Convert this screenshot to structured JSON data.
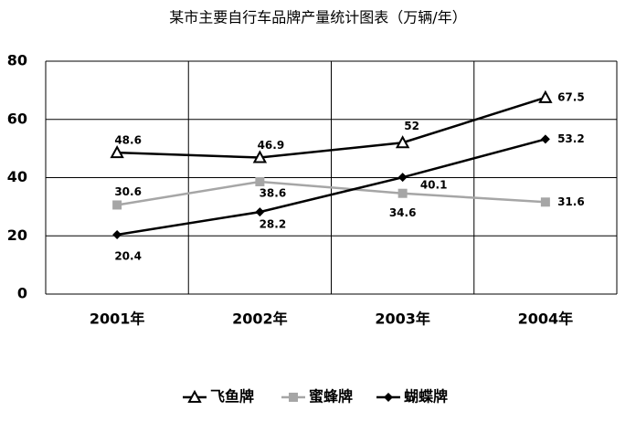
{
  "chart_data": {
    "type": "line",
    "title": "某市主要自行车品牌产量统计图表（万辆/年）",
    "categories": [
      "2001年",
      "2002年",
      "2003年",
      "2004年"
    ],
    "series": [
      {
        "name": "飞鱼牌",
        "color": "#000000",
        "marker": "triangle",
        "values": [
          48.6,
          46.9,
          52,
          67.5
        ]
      },
      {
        "name": "蜜蜂牌",
        "color": "#a6a6a6",
        "marker": "square",
        "values": [
          30.6,
          38.6,
          34.6,
          31.6
        ]
      },
      {
        "name": "蝴蝶牌",
        "color": "#000000",
        "marker": "diamond",
        "values": [
          20.4,
          28.2,
          40.1,
          53.2
        ]
      }
    ],
    "ylim": [
      0,
      80
    ],
    "yticks": [
      0,
      20,
      40,
      60,
      80
    ],
    "grid": true,
    "legend": "bottom"
  }
}
